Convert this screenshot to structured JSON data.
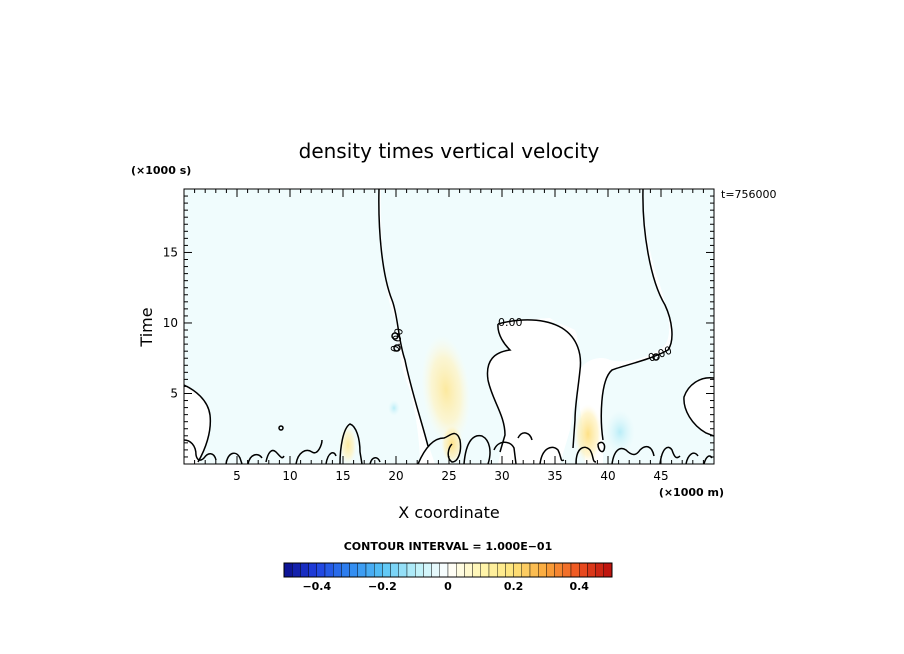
{
  "chart_data": {
    "type": "heatmap",
    "title": "density times vertical velocity",
    "xlabel": "X coordinate",
    "ylabel": "Time",
    "x_unit": "(×1000 m)",
    "y_unit": "(×1000 s)",
    "time_stamp": "t=756000",
    "xlim": [
      0,
      50
    ],
    "ylim": [
      0,
      19.5
    ],
    "x_ticks": [
      5,
      10,
      15,
      20,
      25,
      30,
      35,
      40,
      45
    ],
    "x_tick_labels": [
      "5",
      "10",
      "15",
      "20",
      "25",
      "30",
      "35",
      "40",
      "45"
    ],
    "y_ticks": [
      5,
      10,
      15
    ],
    "y_tick_labels": [
      "5",
      "10",
      "15"
    ],
    "contour_interval_label": "CONTOUR INTERVAL = 1.000E−01",
    "zero_contour_labels": [
      "0.00",
      "0.00",
      "0.00"
    ],
    "colorbar": {
      "range": [
        -0.5,
        0.5
      ],
      "ticks": [
        -0.4,
        -0.2,
        0,
        0.2,
        0.4
      ],
      "tick_labels": [
        "−0.4",
        "−0.2",
        "0",
        "0.2",
        "0.4"
      ],
      "n_bins": 40,
      "colors": [
        "#0b0f8c",
        "#1f3fe0",
        "#2f86f0",
        "#55c3f5",
        "#b9f0f8",
        "#ffffff",
        "#fff6b0",
        "#fde47a",
        "#f9a53a",
        "#ee5020",
        "#b80c0c"
      ]
    },
    "background_value": -0.02,
    "features": [
      {
        "x": 25,
        "y": 4.0,
        "value": 0.08
      },
      {
        "x": 25,
        "y": 1.5,
        "value": 0.14
      },
      {
        "x": 38,
        "y": 2.3,
        "value": 0.1
      },
      {
        "x": 41,
        "y": 2.2,
        "value": -0.06
      },
      {
        "x": 15.5,
        "y": 1.5,
        "value": 0.06
      },
      {
        "x": 20,
        "y": 3.8,
        "value": -0.04
      }
    ]
  }
}
